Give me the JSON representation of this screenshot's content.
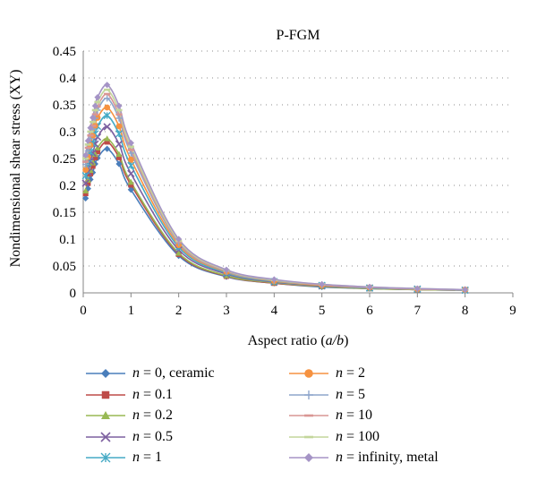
{
  "chart_data": {
    "type": "line",
    "title": "P-FGM",
    "xlabel_prefix": "Aspect ratio (",
    "xlabel_var": "a/b",
    "xlabel_suffix": ")",
    "ylabel": "Nondimensional shear stress (XY)",
    "xlim": [
      0,
      9
    ],
    "ylim": [
      0,
      0.45
    ],
    "xticks": [
      "0",
      "1",
      "2",
      "3",
      "4",
      "5",
      "6",
      "7",
      "8",
      "9"
    ],
    "yticks": [
      "0",
      "0.05",
      "0.1",
      "0.15",
      "0.2",
      "0.25",
      "0.3",
      "0.35",
      "0.4",
      "0.45"
    ],
    "grid": "horizontal-dotted",
    "legend_position": "bottom",
    "x": [
      0.05,
      0.1,
      0.15,
      0.2,
      0.25,
      0.3,
      0.5,
      0.75,
      1,
      2,
      3,
      4,
      5,
      6,
      7,
      8
    ],
    "series": [
      {
        "name_var": "n",
        "name_rest": " = 0, ceramic",
        "color": "#4a7ebb",
        "marker": "diamond",
        "values": [
          0.176,
          0.194,
          0.211,
          0.224,
          0.24,
          0.251,
          0.268,
          0.24,
          0.192,
          0.069,
          0.03,
          0.018,
          0.011,
          0.008,
          0.006,
          0.005
        ]
      },
      {
        "name_var": "n",
        "name_rest": " = 0.1",
        "color": "#be4b48",
        "marker": "square",
        "values": [
          0.185,
          0.204,
          0.222,
          0.236,
          0.252,
          0.263,
          0.281,
          0.252,
          0.201,
          0.072,
          0.031,
          0.018,
          0.012,
          0.008,
          0.006,
          0.005
        ]
      },
      {
        "name_var": "n",
        "name_rest": " = 0.2",
        "color": "#98b954",
        "marker": "triangle",
        "values": [
          0.19,
          0.21,
          0.228,
          0.242,
          0.258,
          0.27,
          0.287,
          0.258,
          0.206,
          0.074,
          0.032,
          0.019,
          0.012,
          0.008,
          0.006,
          0.005
        ]
      },
      {
        "name_var": "n",
        "name_rest": " = 0.5",
        "color": "#7d60a0",
        "marker": "x",
        "values": [
          0.204,
          0.225,
          0.245,
          0.26,
          0.277,
          0.29,
          0.309,
          0.277,
          0.222,
          0.08,
          0.035,
          0.02,
          0.013,
          0.009,
          0.007,
          0.005
        ]
      },
      {
        "name_var": "n",
        "name_rest": " = 1",
        "color": "#46aac5",
        "marker": "star",
        "values": [
          0.218,
          0.241,
          0.262,
          0.278,
          0.296,
          0.31,
          0.33,
          0.296,
          0.237,
          0.085,
          0.037,
          0.021,
          0.014,
          0.009,
          0.007,
          0.005
        ]
      },
      {
        "name_var": "n",
        "name_rest": " = 2",
        "color": "#f69240",
        "marker": "circle",
        "values": [
          0.229,
          0.253,
          0.275,
          0.292,
          0.311,
          0.326,
          0.345,
          0.31,
          0.248,
          0.089,
          0.039,
          0.022,
          0.014,
          0.01,
          0.007,
          0.006
        ]
      },
      {
        "name_var": "n",
        "name_rest": " = 5",
        "color": "#8ea5cb",
        "marker": "plus",
        "values": [
          0.239,
          0.264,
          0.287,
          0.305,
          0.325,
          0.34,
          0.362,
          0.325,
          0.26,
          0.093,
          0.04,
          0.023,
          0.015,
          0.01,
          0.007,
          0.006
        ]
      },
      {
        "name_var": "n",
        "name_rest": " = 10",
        "color": "#d99694",
        "marker": "dash",
        "values": [
          0.244,
          0.27,
          0.293,
          0.311,
          0.332,
          0.347,
          0.37,
          0.332,
          0.266,
          0.095,
          0.041,
          0.024,
          0.015,
          0.01,
          0.007,
          0.006
        ]
      },
      {
        "name_var": "n",
        "name_rest": " = 100",
        "color": "#c3d69b",
        "marker": "dash",
        "values": [
          0.25,
          0.276,
          0.3,
          0.318,
          0.34,
          0.355,
          0.378,
          0.34,
          0.272,
          0.097,
          0.042,
          0.024,
          0.016,
          0.011,
          0.008,
          0.006
        ]
      },
      {
        "name_var": "n",
        "name_rest": " = infinity, metal",
        "color": "#a594c6",
        "marker": "diamond",
        "values": [
          0.256,
          0.283,
          0.307,
          0.326,
          0.348,
          0.364,
          0.387,
          0.348,
          0.279,
          0.1,
          0.043,
          0.025,
          0.016,
          0.011,
          0.008,
          0.006
        ]
      }
    ]
  }
}
